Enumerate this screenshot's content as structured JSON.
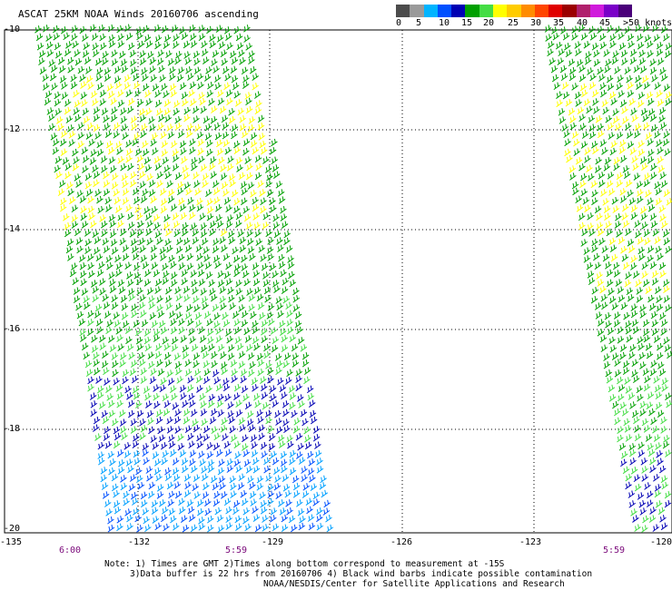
{
  "title": "ASCAT 25KM NOAA Winds 20160706 ascending",
  "legend": {
    "labels": [
      "0",
      "5",
      "10",
      "15",
      "20",
      "25",
      "30",
      "35",
      "40",
      "45",
      ">50 knots"
    ],
    "colors": [
      "#4c4c4c",
      "#9a9a9a",
      "#00b4ff",
      "#0050ff",
      "#0000b4",
      "#00a000",
      "#44dd44",
      "#ffff00",
      "#ffcc00",
      "#ff8c00",
      "#ff4500",
      "#e00000",
      "#9b0000",
      "#b0206c",
      "#d01adc",
      "#7a00c8",
      "#4a007a"
    ]
  },
  "axes": {
    "y_ticks": [
      "-10",
      "-12",
      "-14",
      "-16",
      "-18",
      "-20"
    ],
    "x_ticks": [
      "-135",
      "-132",
      "-129",
      "-126",
      "-123",
      "-120"
    ]
  },
  "times": [
    "6:00",
    "5:59",
    "5:59"
  ],
  "notes": [
    "Note: 1) Times are GMT 2)Times along bottom correspond to measurement at -15S",
    "3)Data buffer is 22 hrs from 20160706 4) Black wind barbs indicate possible contamination",
    "NOAA/NESDIS/Center for Satellite Applications and Research"
  ]
}
